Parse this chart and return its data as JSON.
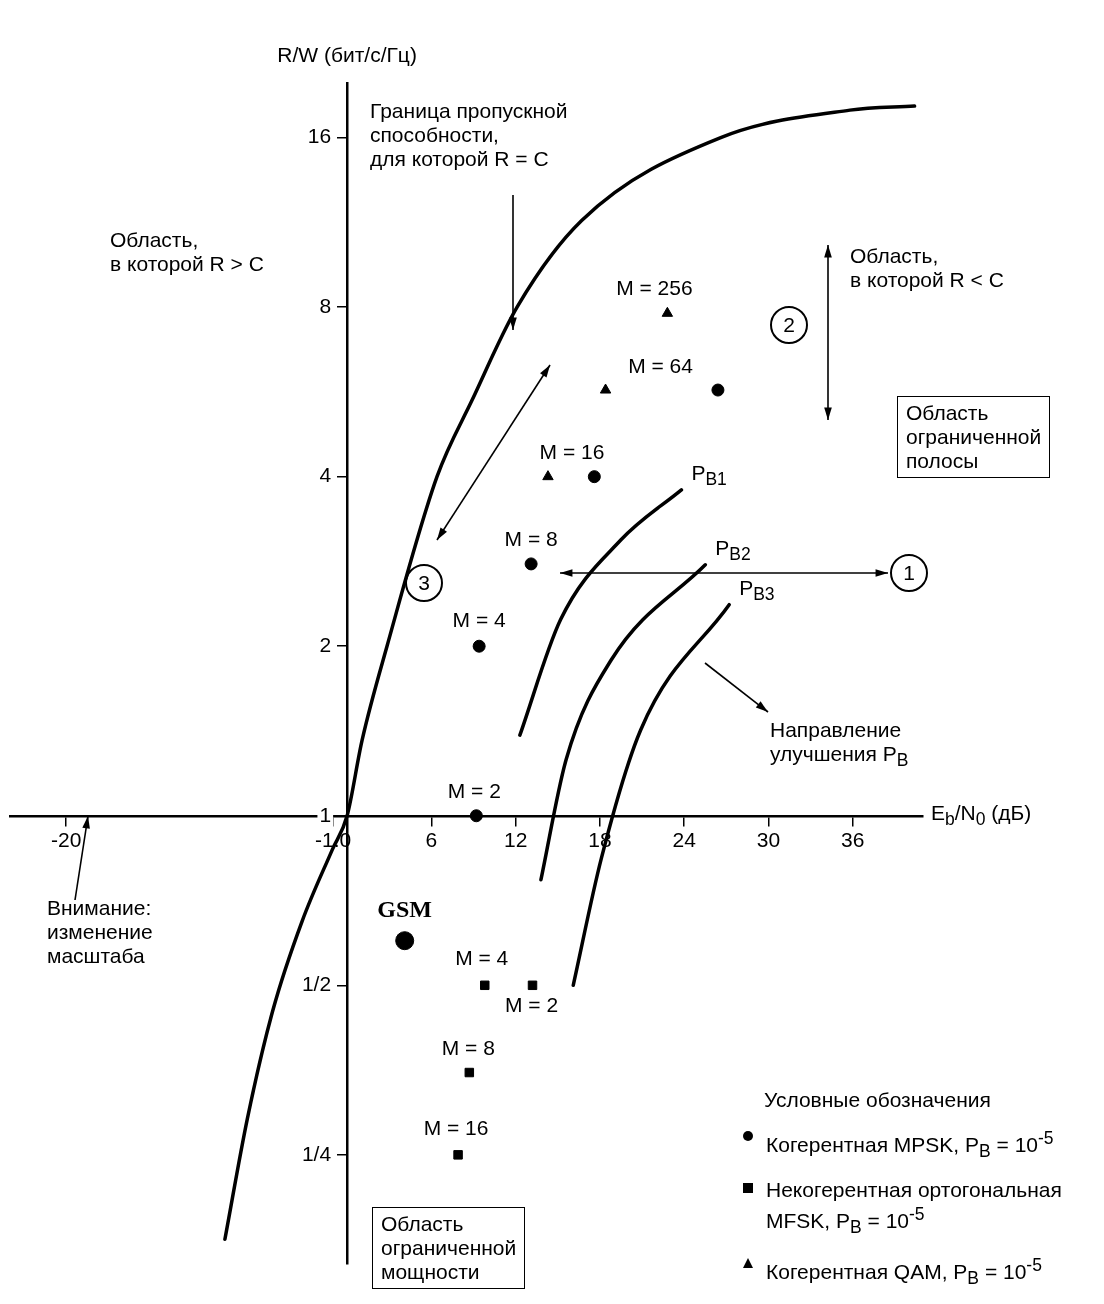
{
  "chart_data": {
    "type": "scatter",
    "ylabel": "R/W (бит/с/Гц)",
    "xlabel": "E$_{b}$/N$_{0}$ (дБ)",
    "legend_title": "Условные обозначения",
    "legend": "bottom right",
    "log": "y",
    "grid": false,
    "xlim": [
      -24,
      41
    ],
    "xticks": [
      -20,
      {
        "value": -1,
        "label": "-1.0"
      },
      6,
      12,
      18,
      24,
      30,
      36
    ],
    "ylim": [
      0.16,
      20
    ],
    "yticks": [
      {
        "value": 0.25,
        "label": "1/4"
      },
      {
        "value": 0.5,
        "label": "1/2"
      },
      1,
      2,
      4,
      8,
      16
    ],
    "series": [
      {
        "type": "line",
        "color": "#000000",
        "marker": "none",
        "x": [
          -8.7,
          -7.1,
          -5.3,
          -3.2,
          -1.06,
          0,
          1.06,
          2.84,
          6.4,
          8.9,
          12.1,
          16.7,
          26.6,
          35.8,
          40.4
        ],
        "values": [
          0.177,
          0.29,
          0.45,
          0.65,
          0.87,
          1,
          1.36,
          2,
          4,
          5.47,
          8,
          11.4,
          16,
          17.9,
          18.2
        ]
      },
      {
        "name": "Когерентная MPSK, P$_{B}$ = 10$^{-5}$",
        "type": "scatter",
        "color": "#000000",
        "marker": "circle",
        "x": [
          9.2,
          9.4,
          13.1,
          17.6,
          26.4
        ],
        "values": [
          1,
          2,
          2.8,
          4,
          5.7
        ]
      },
      {
        "name": "Некогерентная ортогональная MFSK, P$_{B}$ = 10$^{-5}$",
        "type": "scatter",
        "color": "#000000",
        "marker": "square",
        "x": [
          13.2,
          9.8,
          8.7,
          7.9
        ],
        "values": [
          0.5,
          0.5,
          0.35,
          0.25
        ]
      },
      {
        "name": "Когерентная QAM, P$_{B}$ = 10$^{-5}$",
        "type": "scatter",
        "color": "#000000",
        "marker": "triangle",
        "x": [
          14.3,
          18.4,
          22.8
        ],
        "values": [
          4,
          5.7,
          7.8
        ]
      },
      {
        "name": "GSM",
        "type": "scatter",
        "color": "#000000",
        "marker": "circle",
        "x": [
          4.1
        ],
        "values": [
          0.6
        ]
      },
      {
        "name": "P$_{B1}$",
        "type": "line",
        "color": "#000000",
        "marker": "none",
        "x": [
          12.3,
          15.2,
          19.5,
          23.8
        ],
        "values": [
          1.39,
          2.23,
          3.09,
          3.79
        ]
      },
      {
        "name": "P$_{B2}$",
        "type": "line",
        "color": "#000000",
        "marker": "none",
        "x": [
          13.8,
          15.6,
          18.8,
          25.5
        ],
        "values": [
          0.77,
          1.26,
          1.89,
          2.79
        ]
      },
      {
        "name": "P$_{B3}$",
        "type": "line",
        "color": "#000000",
        "marker": "none",
        "x": [
          16.1,
          18.1,
          20.9,
          27.2
        ],
        "values": [
          0.5,
          0.84,
          1.42,
          2.37
        ]
      }
    ],
    "annotations": [
      "Граница пропускной\nспособности,\nдля которой R = C",
      "Область,\nв которой R > C",
      "Область,\nв которой R < C",
      "Область\nограниченной\nполосы",
      "Направление\nулучшения P$_{B}$",
      "Внимание:\nизменение\nмасштаба",
      "Область\nограниченной\nмощности",
      "1",
      "2",
      "3",
      {
        "text": "M = 256",
        "x": 22.8,
        "y": 7.8
      },
      {
        "text": "M = 64",
        "x": 18.4,
        "y": 5.7
      },
      {
        "text": "M = 16",
        "x": 14.3,
        "y": 4
      },
      {
        "text": "M = 8",
        "x": 13.1,
        "y": 2.8
      },
      {
        "text": "M = 4",
        "x": 9.4,
        "y": 2
      },
      {
        "text": "M = 2",
        "x": 9.2,
        "y": 1
      },
      {
        "text": "M = 4",
        "x": 9.8,
        "y": 0.5
      },
      {
        "text": "M = 2",
        "x": 13.2,
        "y": 0.5
      },
      {
        "text": "M = 8",
        "x": 8.7,
        "y": 0.35
      },
      {
        "text": "M = 16",
        "x": 7.9,
        "y": 0.25
      }
    ]
  }
}
